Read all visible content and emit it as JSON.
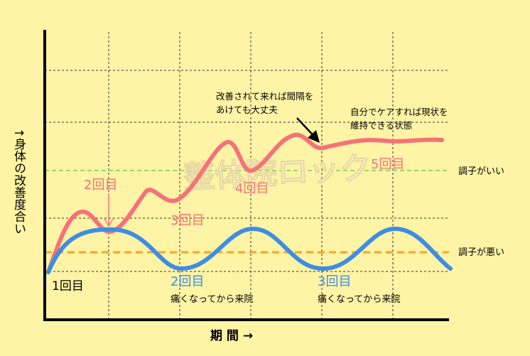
{
  "y_axis_label": "↑身体の改善度合い",
  "x_axis_label": "期 間 →",
  "watermark": "整体院ロック",
  "reference_lines": {
    "good": {
      "label": "調子がいい",
      "color": "#9bd46a"
    },
    "bad": {
      "label": "調子が悪い",
      "color": "#f5a623"
    }
  },
  "annotations": {
    "spacing_note": [
      "改善されて来れば間隔を",
      "あけても大丈夫"
    ],
    "maintain_note": [
      "自分でケアすれば現状を",
      "維持できる状態"
    ]
  },
  "red_visits": [
    "2回目",
    "3回目",
    "4回目",
    "5回目"
  ],
  "blue_visits": [
    {
      "count": "1回目",
      "note": ""
    },
    {
      "count": "2回目",
      "note": "痛くなってから来院"
    },
    {
      "count": "3回目",
      "note": "痛くなってから来院"
    }
  ],
  "colors": {
    "red_series": "#f57278",
    "blue_series": "#3d8ee3",
    "axis": "#000000",
    "grid": "#333333",
    "background": "#fff3a5"
  }
}
